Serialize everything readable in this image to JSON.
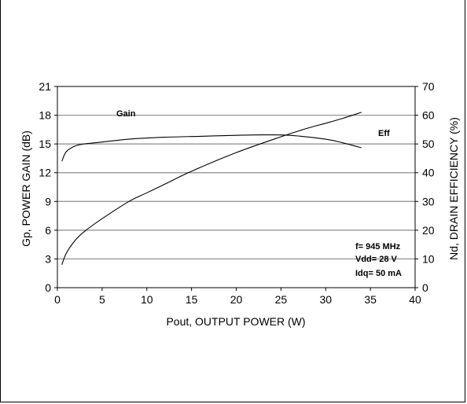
{
  "chart_data": {
    "type": "line",
    "xlabel": "Pout, OUTPUT POWER (W)",
    "ylabel_left": "Gp, POWER GAIN (dB)",
    "ylabel_right": "Nd, DRAIN EFFICIENCY (%)",
    "xlim": [
      0,
      40
    ],
    "ylim_left": [
      0,
      21
    ],
    "ylim_right": [
      0,
      70
    ],
    "x_ticks": [
      "0",
      "5",
      "10",
      "15",
      "20",
      "25",
      "30",
      "35",
      "40"
    ],
    "y_left_ticks": [
      "0",
      "3",
      "6",
      "9",
      "12",
      "15",
      "18",
      "21"
    ],
    "y_right_ticks": [
      "0",
      "10",
      "20",
      "30",
      "40",
      "50",
      "60",
      "70"
    ],
    "grid": "horizontal",
    "series": [
      {
        "name": "Gain",
        "axis": "left",
        "x": [
          0.5,
          1,
          2,
          3,
          5,
          8,
          12,
          16,
          20,
          23,
          26,
          30,
          32,
          34
        ],
        "y": [
          13.2,
          14.2,
          14.8,
          15.0,
          15.2,
          15.5,
          15.7,
          15.8,
          15.9,
          15.95,
          15.9,
          15.5,
          15.1,
          14.6
        ]
      },
      {
        "name": "Eff",
        "axis": "right",
        "x": [
          0.5,
          1,
          2,
          3,
          5,
          8,
          10,
          12,
          15,
          20,
          25,
          28,
          30,
          32,
          34
        ],
        "y": [
          8,
          12,
          16.5,
          19.5,
          24,
          30,
          33,
          36,
          40.5,
          47,
          52.5,
          55.5,
          57.2,
          59,
          61
        ]
      }
    ],
    "annotations": {
      "gain_label": "Gain",
      "eff_label": "Eff",
      "conditions": [
        "f= 945 MHz",
        "Vdd= 28 V",
        "Idq= 50 mA"
      ]
    }
  }
}
